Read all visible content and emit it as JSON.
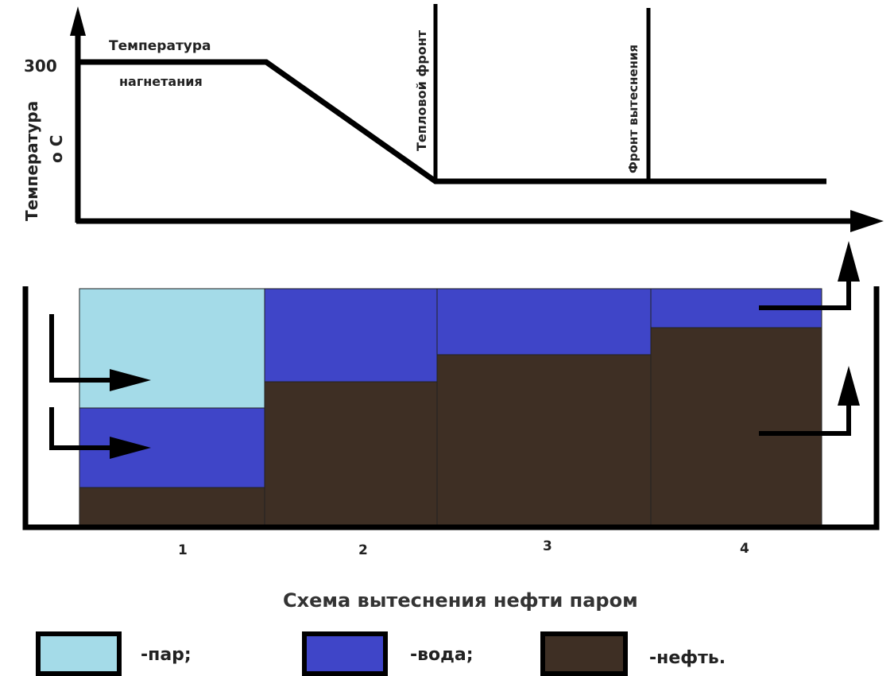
{
  "graph": {
    "y_axis_label": "Температура",
    "y_unit": "o C",
    "y_tick": "300",
    "injection_label_line1": "Температура",
    "injection_label_line2": "нагнетания",
    "heat_front_label": "Тепловой фронт",
    "displacement_front_label": "Фронт вытеснения"
  },
  "scheme": {
    "zones": [
      {
        "number": "1",
        "steam": 0.5,
        "water": 0.33,
        "oil": 0.17
      },
      {
        "number": "2",
        "steam": 0,
        "water": 0.39,
        "oil": 0.61
      },
      {
        "number": "3",
        "steam": 0,
        "water": 0.28,
        "oil": 0.72
      },
      {
        "number": "4",
        "steam": 0,
        "water": 0.17,
        "oil": 0.83
      }
    ],
    "title": "Схема вытеснения нефти паром"
  },
  "legend": [
    {
      "label": "-пар;",
      "color": "#a4dbe8"
    },
    {
      "label": "-вода;",
      "color": "#3f45c8"
    },
    {
      "label": "-нефть.",
      "color": "#3e2f24"
    }
  ],
  "colors": {
    "steam": "#a4dbe8",
    "water": "#3f45c8",
    "oil": "#3e2f24",
    "line": "#000000"
  }
}
